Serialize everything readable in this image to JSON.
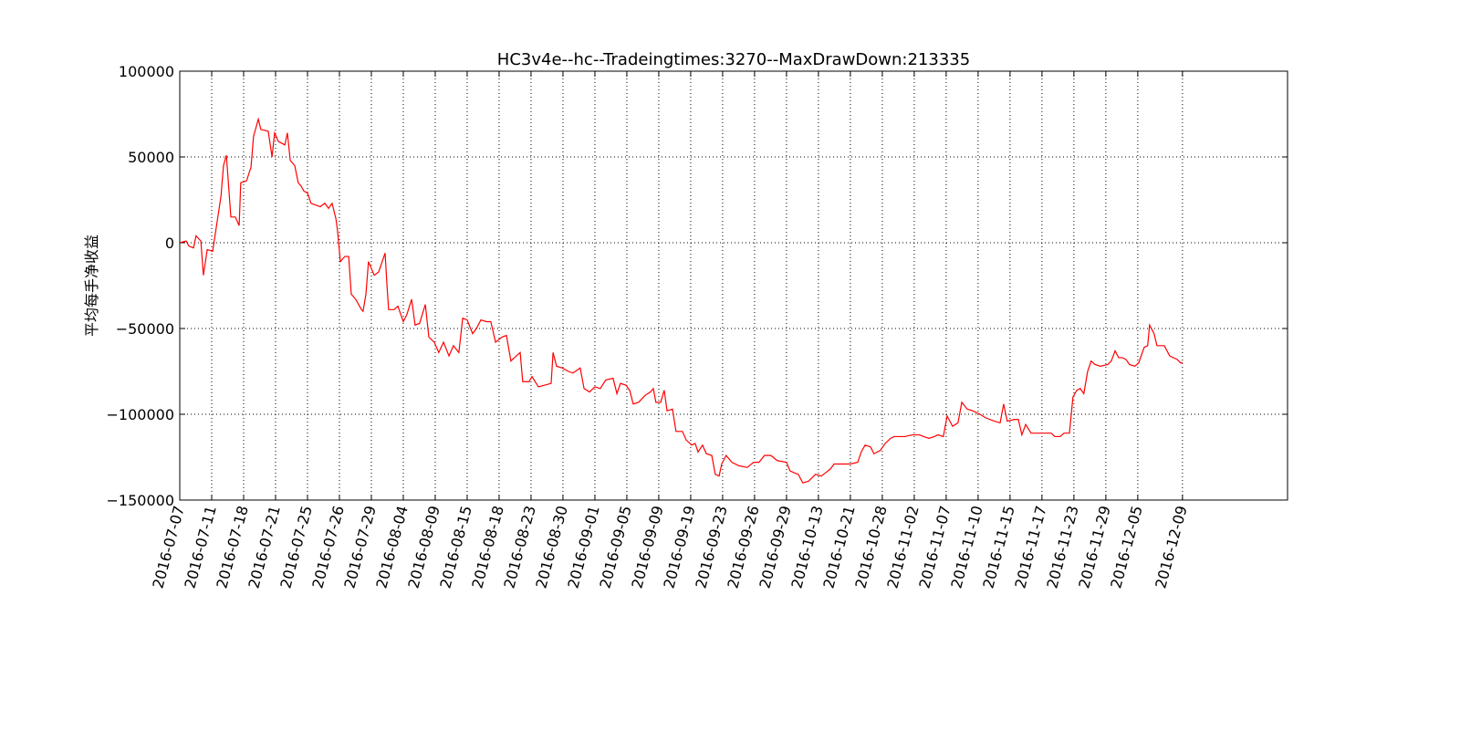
{
  "chart_data": {
    "type": "line",
    "title": "HC3v4e--hc--Tradeingtimes:3270--MaxDrawDown:213335",
    "ylabel": "平均每手净收益",
    "x": [
      0,
      20,
      29,
      43,
      51,
      66,
      74,
      86,
      103,
      129,
      137,
      146,
      160,
      174,
      186,
      191,
      209,
      223,
      231,
      246,
      254,
      277,
      289,
      297,
      309,
      329,
      337,
      346,
      360,
      371,
      380,
      389,
      400,
      411,
      440,
      454,
      466,
      477,
      489,
      494,
      503,
      517,
      529,
      537,
      551,
      569,
      574,
      583,
      591,
      609,
      623,
      643,
      649,
      654,
      671,
      683,
      700,
      711,
      726,
      737,
      751,
      769,
      780,
      797,
      811,
      826,
      843,
      857,
      874,
      886,
      900,
      917,
      929,
      943,
      960,
      974,
      989,
      1009,
      1023,
      1037,
      1054,
      1066,
      1074,
      1094,
      1103,
      1123,
      1143,
      1163,
      1169,
      1180,
      1197,
      1217,
      1231,
      1254,
      1266,
      1283,
      1300,
      1317,
      1334,
      1357,
      1369,
      1380,
      1397,
      1409,
      1420,
      1437,
      1457,
      1474,
      1483,
      1491,
      1506,
      1517,
      1526,
      1543,
      1554,
      1574,
      1586,
      1603,
      1614,
      1623,
      1637,
      1649,
      1666,
      1677,
      1689,
      1697,
      1711,
      1729,
      1751,
      1777,
      1797,
      1814,
      1831,
      1851,
      1871,
      1900,
      1911,
      1923,
      1937,
      1951,
      1969,
      1980,
      1991,
      2009,
      2023,
      2037,
      2049,
      2066,
      2100,
      2123,
      2134,
      2146,
      2163,
      2174,
      2194,
      2209,
      2226,
      2237,
      2249,
      2271,
      2294,
      2317,
      2329,
      2346,
      2363,
      2374,
      2391,
      2403,
      2420,
      2437,
      2449,
      2466,
      2483,
      2506,
      2523,
      2551,
      2569,
      2580,
      2591,
      2614,
      2626,
      2637,
      2649,
      2666,
      2689,
      2711,
      2729,
      2740,
      2757,
      2769,
      2786,
      2797,
      2809,
      2820,
      2831,
      2843,
      2854,
      2866,
      2883,
      2906,
      2917,
      2929,
      2940,
      2951,
      2963,
      2974,
      2991,
      3003,
      3020,
      3031,
      3037,
      3051,
      3060,
      3083,
      3100,
      3123,
      3134,
      3140
    ],
    "series": [
      {
        "color": "#ff0000",
        "values": [
          0,
          1000,
          -2000,
          -3000,
          4000,
          1000,
          -19000,
          -4000,
          -5000,
          27000,
          45000,
          51000,
          15000,
          15000,
          10000,
          35000,
          36000,
          44000,
          62000,
          72000,
          66000,
          65000,
          50000,
          64000,
          59000,
          57000,
          64000,
          48000,
          45000,
          35000,
          33000,
          30000,
          29000,
          23000,
          21000,
          23000,
          20000,
          23000,
          14000,
          7000,
          -11000,
          -8000,
          -8000,
          -30000,
          -33000,
          -39000,
          -40000,
          -30000,
          -11000,
          -19000,
          -17000,
          -6000,
          -25000,
          -39000,
          -39000,
          -37000,
          -46000,
          -42000,
          -33000,
          -48000,
          -47000,
          -36000,
          -55000,
          -58000,
          -64000,
          -58000,
          -66000,
          -60000,
          -64000,
          -44000,
          -45000,
          -53000,
          -50000,
          -45000,
          -46000,
          -46000,
          -58000,
          -55000,
          -54000,
          -69000,
          -66000,
          -64000,
          -81000,
          -81000,
          -78000,
          -84000,
          -83000,
          -82000,
          -64000,
          -72000,
          -73000,
          -75000,
          -76000,
          -73000,
          -85000,
          -87000,
          -84000,
          -85000,
          -80000,
          -79000,
          -88000,
          -82000,
          -83000,
          -86000,
          -94000,
          -93000,
          -89000,
          -87000,
          -85000,
          -93000,
          -93000,
          -86000,
          -98000,
          -97000,
          -110000,
          -110000,
          -115000,
          -118000,
          -117000,
          -122000,
          -118000,
          -123000,
          -124000,
          -135000,
          -136000,
          -129000,
          -124000,
          -128000,
          -130000,
          -131000,
          -128000,
          -128000,
          -124000,
          -124000,
          -127000,
          -128000,
          -133000,
          -134000,
          -135000,
          -140000,
          -139000,
          -137000,
          -135000,
          -136000,
          -134000,
          -132000,
          -129000,
          -129000,
          -129000,
          -128000,
          -122000,
          -118000,
          -119000,
          -123000,
          -121000,
          -117000,
          -114000,
          -113000,
          -113000,
          -113000,
          -112000,
          -112000,
          -113000,
          -114000,
          -113000,
          -112000,
          -113000,
          -101000,
          -107000,
          -105000,
          -93000,
          -97000,
          -98000,
          -100000,
          -102000,
          -104000,
          -105000,
          -94000,
          -104000,
          -103000,
          -103000,
          -112000,
          -106000,
          -111000,
          -111000,
          -111000,
          -111000,
          -113000,
          -113000,
          -111000,
          -111000,
          -90000,
          -86000,
          -85000,
          -88000,
          -75000,
          -69000,
          -71000,
          -72000,
          -71000,
          -69000,
          -63000,
          -67000,
          -67000,
          -68000,
          -71000,
          -72000,
          -70000,
          -61000,
          -60000,
          -48000,
          -53000,
          -60000,
          -60000,
          -66000,
          -68000,
          -70000,
          -70000
        ]
      }
    ],
    "xlim": [
      0,
      3469
    ],
    "xticks": [
      {
        "value": 0,
        "label": "2016-07-07"
      },
      {
        "value": 100,
        "label": "2016-07-11"
      },
      {
        "value": 200,
        "label": "2016-07-18"
      },
      {
        "value": 300,
        "label": "2016-07-21"
      },
      {
        "value": 400,
        "label": "2016-07-25"
      },
      {
        "value": 500,
        "label": "2016-07-26"
      },
      {
        "value": 600,
        "label": "2016-07-29"
      },
      {
        "value": 700,
        "label": "2016-08-04"
      },
      {
        "value": 800,
        "label": "2016-08-09"
      },
      {
        "value": 900,
        "label": "2016-08-15"
      },
      {
        "value": 1000,
        "label": "2016-08-18"
      },
      {
        "value": 1100,
        "label": "2016-08-23"
      },
      {
        "value": 1200,
        "label": "2016-08-30"
      },
      {
        "value": 1300,
        "label": "2016-09-01"
      },
      {
        "value": 1400,
        "label": "2016-09-05"
      },
      {
        "value": 1500,
        "label": "2016-09-09"
      },
      {
        "value": 1600,
        "label": "2016-09-19"
      },
      {
        "value": 1700,
        "label": "2016-09-23"
      },
      {
        "value": 1800,
        "label": "2016-09-26"
      },
      {
        "value": 1900,
        "label": "2016-09-29"
      },
      {
        "value": 2000,
        "label": "2016-10-13"
      },
      {
        "value": 2100,
        "label": "2016-10-21"
      },
      {
        "value": 2200,
        "label": "2016-10-28"
      },
      {
        "value": 2300,
        "label": "2016-11-02"
      },
      {
        "value": 2400,
        "label": "2016-11-07"
      },
      {
        "value": 2500,
        "label": "2016-11-10"
      },
      {
        "value": 2600,
        "label": "2016-11-15"
      },
      {
        "value": 2700,
        "label": "2016-11-17"
      },
      {
        "value": 2800,
        "label": "2016-11-23"
      },
      {
        "value": 2900,
        "label": "2016-11-29"
      },
      {
        "value": 3000,
        "label": "2016-12-05"
      },
      {
        "value": 3140,
        "label": "2016-12-09"
      }
    ],
    "ylim": [
      -150000,
      100000
    ],
    "yticks": [
      100000,
      50000,
      0,
      {
        "value": -50000,
        "label": "−50000"
      },
      {
        "value": -100000,
        "label": "−100000"
      },
      {
        "value": -150000,
        "label": "−150000"
      }
    ],
    "grid": true
  }
}
